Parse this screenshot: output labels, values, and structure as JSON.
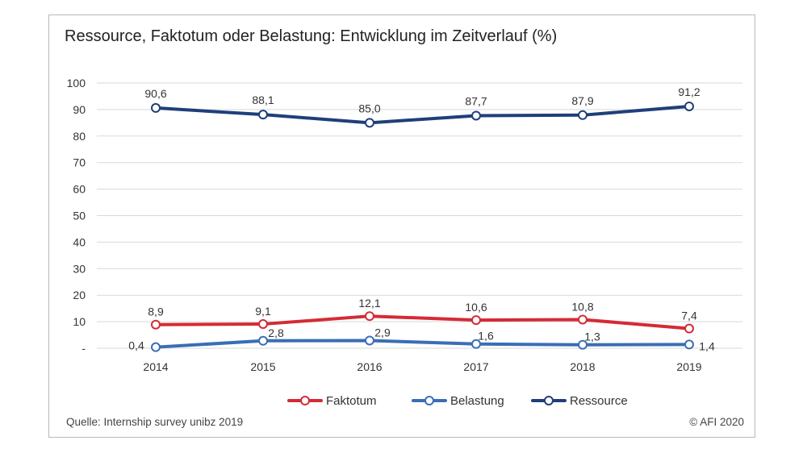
{
  "title": "Ressource, Faktotum oder Belastung: Entwicklung im Zeitverlauf (%)",
  "source": "Quelle: Internship survey unibz 2019",
  "copyright": "© AFI 2020",
  "colors": {
    "Faktotum": "#d42b35",
    "Belastung": "#3a6eb5",
    "Ressource": "#1f3f7a",
    "grid": "#d9d9d9"
  },
  "chart_data": {
    "type": "line",
    "title": "Ressource, Faktotum oder Belastung: Entwicklung im Zeitverlauf (%)",
    "xlabel": "",
    "ylabel": "",
    "x": [
      "2014",
      "2015",
      "2016",
      "2017",
      "2018",
      "2019"
    ],
    "ylim": [
      0,
      100
    ],
    "yticks": [
      "-",
      "10",
      "20",
      "30",
      "40",
      "50",
      "60",
      "70",
      "80",
      "90",
      "100"
    ],
    "grid": true,
    "legend_position": "bottom",
    "series": [
      {
        "name": "Faktotum",
        "values": [
          8.9,
          9.1,
          12.1,
          10.6,
          10.8,
          7.4
        ],
        "labels": [
          "8,9",
          "9,1",
          "12,1",
          "10,6",
          "10,8",
          "7,4"
        ]
      },
      {
        "name": "Belastung",
        "values": [
          0.4,
          2.8,
          2.9,
          1.6,
          1.3,
          1.4
        ],
        "labels": [
          "0,4",
          "2,8",
          "2,9",
          "1,6",
          "1,3",
          "1,4"
        ]
      },
      {
        "name": "Ressource",
        "values": [
          90.6,
          88.1,
          85.0,
          87.7,
          87.9,
          91.2
        ],
        "labels": [
          "90,6",
          "88,1",
          "85,0",
          "87,7",
          "87,9",
          "91,2"
        ]
      }
    ]
  }
}
